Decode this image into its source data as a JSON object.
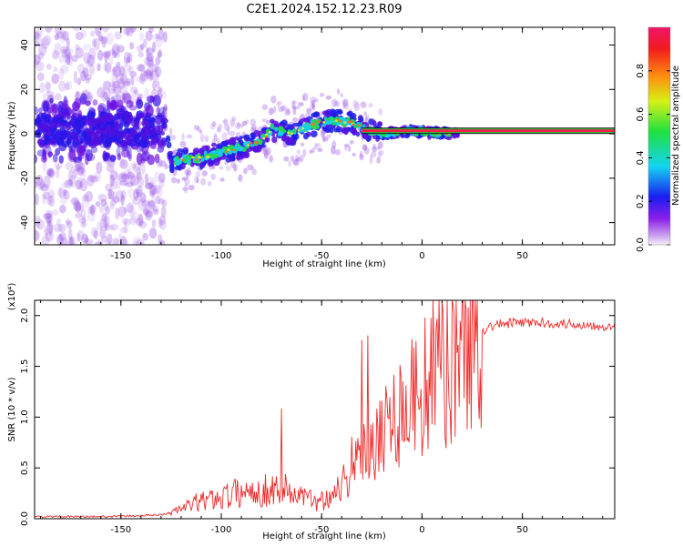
{
  "colors": {
    "snr_line": "#ee2a2a",
    "axis": "#000000",
    "band_fill": "#ee2244",
    "band_edge": "#22cc44"
  },
  "chart_data": [
    {
      "type": "heatmap",
      "title": "C2E1.2024.152.12.23.R09",
      "xlabel": "Height of straight line (km)",
      "ylabel": "Frequency (Hz)",
      "xlim": [
        -193,
        96
      ],
      "ylim": [
        -50,
        48
      ],
      "xticks": [
        -150,
        -100,
        -50,
        0,
        50
      ],
      "yticks": [
        -40,
        -20,
        0,
        20,
        40
      ],
      "colorbar": {
        "label": "Normalized spectral amplitude",
        "range": [
          0,
          1
        ],
        "ticks": [
          0.0,
          0.2,
          0.4,
          0.6,
          0.8
        ],
        "tick_labels": [
          "0.0",
          "0.2",
          "0.4",
          "0.6",
          "0.8"
        ]
      },
      "ridge_centre_hz": [
        {
          "x": -190,
          "y": 2
        },
        {
          "x": -160,
          "y": 2
        },
        {
          "x": -128,
          "y": 0
        },
        {
          "x": -125,
          "y": -12
        },
        {
          "x": -110,
          "y": -11
        },
        {
          "x": -100,
          "y": -8
        },
        {
          "x": -90,
          "y": -6
        },
        {
          "x": -80,
          "y": -3
        },
        {
          "x": -75,
          "y": 2
        },
        {
          "x": -65,
          "y": 0
        },
        {
          "x": -55,
          "y": 4
        },
        {
          "x": -45,
          "y": 6
        },
        {
          "x": -35,
          "y": 5
        },
        {
          "x": -28,
          "y": 2
        },
        {
          "x": -20,
          "y": 0
        },
        {
          "x": -10,
          "y": 1
        },
        {
          "x": 0,
          "y": 1
        },
        {
          "x": 20,
          "y": 0
        },
        {
          "x": 96,
          "y": 0
        }
      ]
    },
    {
      "type": "line",
      "xlabel": "Height of straight line (km)",
      "ylabel": "SNR (10 * v/v)",
      "scale_note": "(x10⁴)",
      "xlim": [
        -193,
        96
      ],
      "ylim": [
        0,
        2.15
      ],
      "xticks": [
        -150,
        -100,
        -50,
        0,
        50
      ],
      "yticks": [
        0.0,
        0.5,
        1.0,
        1.5,
        2.0
      ],
      "ytick_labels": [
        "0.0",
        "0.5",
        "1.0",
        "1.5",
        "2.0"
      ],
      "series": [
        {
          "name": "SNR",
          "x": [
            -193,
            -180,
            -160,
            -140,
            -130,
            -125,
            -120,
            -115,
            -110,
            -105,
            -100,
            -95,
            -90,
            -85,
            -80,
            -75,
            -70,
            -65,
            -60,
            -55,
            -50,
            -45,
            -40,
            -35,
            -30,
            -25,
            -20,
            -15,
            -10,
            -5,
            0,
            5,
            10,
            15,
            20,
            25,
            30,
            35,
            40,
            50,
            60,
            70,
            80,
            90,
            96
          ],
          "values": [
            0.02,
            0.02,
            0.02,
            0.03,
            0.04,
            0.06,
            0.1,
            0.14,
            0.17,
            0.19,
            0.22,
            0.24,
            0.26,
            0.27,
            0.27,
            0.29,
            0.3,
            0.26,
            0.22,
            0.18,
            0.18,
            0.25,
            0.35,
            0.45,
            0.6,
            0.8,
            0.9,
            1.0,
            1.1,
            1.2,
            1.3,
            1.4,
            1.5,
            1.6,
            1.7,
            1.78,
            1.85,
            1.9,
            1.92,
            1.93,
            1.93,
            1.92,
            1.91,
            1.9,
            1.88
          ]
        }
      ],
      "spikes": [
        {
          "x": -70,
          "y": 1.08
        },
        {
          "x": -35,
          "y": 0.8
        },
        {
          "x": -30,
          "y": 1.75
        },
        {
          "x": -27,
          "y": 1.8
        },
        {
          "x": -22,
          "y": 0.9
        },
        {
          "x": -18,
          "y": 1.3
        },
        {
          "x": 10,
          "y": 2.15
        },
        {
          "x": 12,
          "y": 0.7
        }
      ]
    }
  ]
}
